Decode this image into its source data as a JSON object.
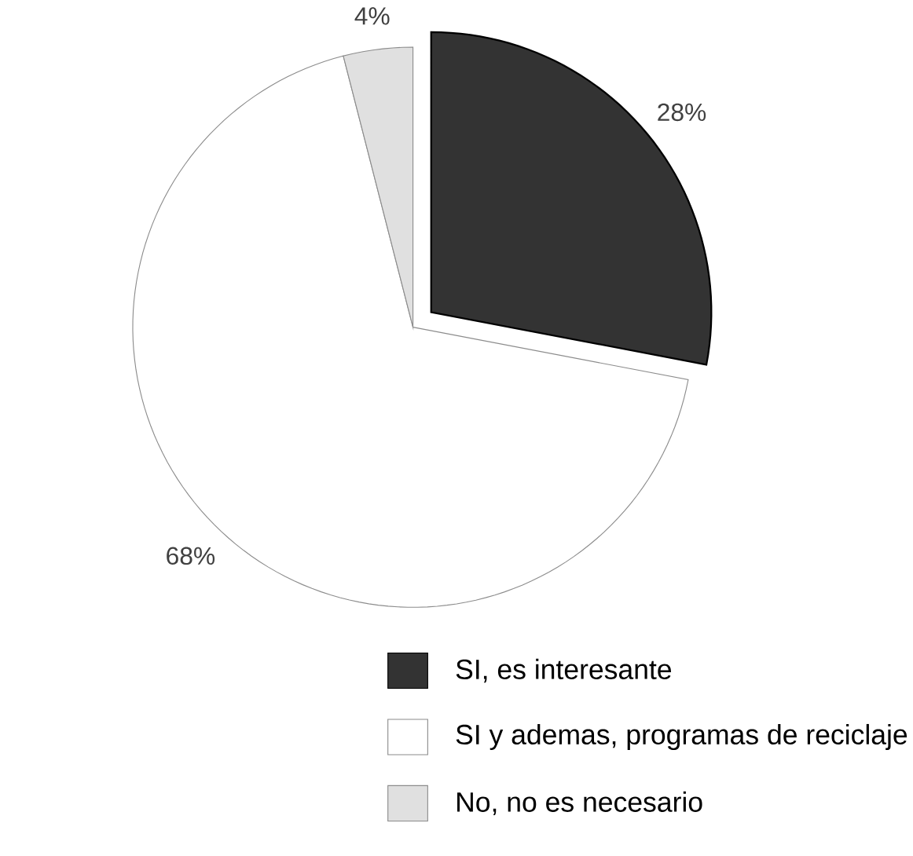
{
  "chart_data": {
    "type": "pie",
    "categories": [
      "SI, es interesante",
      "SI y ademas, programas de reciclaje",
      "No, no es necesario"
    ],
    "values": [
      28,
      68,
      4
    ],
    "value_labels": [
      "28%",
      "68%",
      "4%"
    ],
    "colors": [
      "#333333",
      "#ffffff",
      "#e0e0e0"
    ],
    "legend": "bottom"
  }
}
